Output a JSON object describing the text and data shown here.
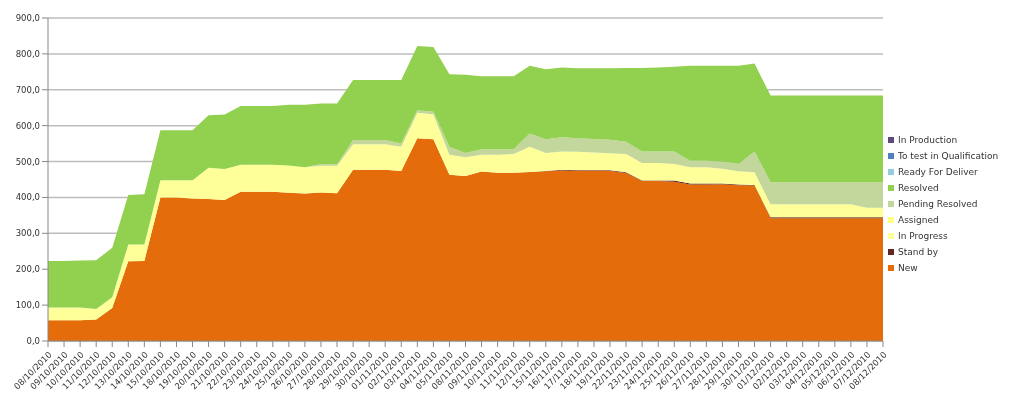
{
  "chart_data": {
    "type": "area",
    "stacked": true,
    "categories": [
      "08/10/2010",
      "09/10/2010",
      "10/10/2010",
      "11/10/2010",
      "12/10/2010",
      "13/10/2010",
      "14/10/2010",
      "15/10/2010",
      "18/10/2010",
      "19/10/2010",
      "20/10/2010",
      "21/10/2010",
      "22/10/2010",
      "23/10/2010",
      "24/10/2010",
      "25/10/2010",
      "26/10/2010",
      "27/10/2010",
      "28/10/2010",
      "29/10/2010",
      "30/10/2010",
      "01/11/2010",
      "02/11/2010",
      "03/11/2010",
      "04/11/2010",
      "05/11/2010",
      "08/11/2010",
      "09/11/2010",
      "10/11/2010",
      "11/11/2010",
      "12/11/2010",
      "15/11/2010",
      "16/11/2010",
      "17/11/2010",
      "18/11/2010",
      "19/11/2010",
      "22/11/2010",
      "23/11/2010",
      "24/11/2010",
      "25/11/2010",
      "26/11/2010",
      "27/11/2010",
      "28/11/2010",
      "29/11/2010",
      "30/11/2010",
      "01/12/2010",
      "02/12/2010",
      "03/12/2010",
      "04/12/2010",
      "05/12/2010",
      "06/12/2010",
      "07/12/2010",
      "08/12/2010"
    ],
    "series": [
      {
        "name": "New",
        "color": "#e46c0a",
        "values": [
          58,
          58,
          58,
          60,
          92,
          222,
          223,
          400,
          400,
          397,
          396,
          393,
          416,
          416,
          416,
          413,
          411,
          414,
          412,
          477,
          477,
          477,
          474,
          565,
          562,
          463,
          460,
          472,
          469,
          469,
          471,
          473,
          475,
          474,
          474,
          474,
          468,
          446,
          446,
          444,
          436,
          436,
          437,
          434,
          433,
          342,
          342,
          342,
          342,
          342,
          342,
          342,
          342
        ]
      },
      {
        "name": "Stand by",
        "color": "#632523",
        "values": [
          0,
          0,
          0,
          0,
          0,
          0,
          0,
          0,
          0,
          0,
          0,
          0,
          0,
          0,
          0,
          0,
          0,
          0,
          0,
          0,
          0,
          0,
          0,
          0,
          0,
          0,
          0,
          0,
          0,
          0,
          0,
          1,
          2,
          2,
          2,
          2,
          2,
          1,
          1,
          3,
          3,
          3,
          2,
          2,
          2,
          3,
          3,
          3,
          3,
          3,
          3,
          3,
          3
        ]
      },
      {
        "name": "In Progress",
        "color": "#ffff99",
        "values": [
          35,
          35,
          35,
          29,
          30,
          47,
          46,
          48,
          48,
          51,
          87,
          86,
          75,
          75,
          75,
          76,
          73,
          74,
          76,
          71,
          71,
          71,
          67,
          71,
          70,
          56,
          52,
          47,
          50,
          52,
          70,
          50,
          51,
          51,
          49,
          47,
          51,
          49,
          49,
          46,
          45,
          45,
          41,
          37,
          35,
          36,
          36,
          36,
          36,
          36,
          36,
          26,
          26
        ]
      },
      {
        "name": "Assigned",
        "color": "#ffff80",
        "values": [
          null,
          null,
          null,
          null,
          null,
          null,
          null,
          null,
          null,
          null,
          null,
          null,
          null,
          null,
          null,
          null,
          null,
          null,
          null,
          null,
          null,
          null,
          null,
          null,
          null,
          null,
          null,
          null,
          null,
          null,
          null,
          null,
          null,
          null,
          null,
          null,
          null,
          null,
          null,
          null,
          null,
          null,
          null,
          null,
          null,
          null,
          null,
          null,
          null,
          null,
          null,
          null,
          null
        ]
      },
      {
        "name": "Pending Resolved",
        "color": "#c3d69b",
        "values": [
          0,
          0,
          0,
          0,
          0,
          0,
          0,
          0,
          0,
          0,
          0,
          0,
          0,
          0,
          0,
          0,
          0,
          5,
          4,
          12,
          12,
          12,
          9,
          7,
          7,
          22,
          12,
          15,
          15,
          13,
          37,
          38,
          40,
          38,
          38,
          38,
          34,
          32,
          32,
          35,
          18,
          18,
          20,
          20,
          58,
          61,
          61,
          61,
          61,
          61,
          61,
          71,
          71
        ]
      },
      {
        "name": "Resolved",
        "color": "#92d050",
        "values": [
          130,
          130,
          131,
          136,
          138,
          138,
          140,
          139,
          139,
          139,
          146,
          152,
          164,
          164,
          164,
          169,
          174,
          169,
          170,
          167,
          167,
          167,
          177,
          179,
          180,
          202,
          218,
          204,
          204,
          204,
          189,
          195,
          194,
          195,
          197,
          199,
          206,
          233,
          234,
          236,
          265,
          265,
          267,
          274,
          245,
          242,
          242,
          242,
          242,
          242,
          242,
          242,
          242
        ]
      },
      {
        "name": "Ready For Deliver",
        "color": "#93cddd",
        "values": [
          null,
          null,
          null,
          null,
          null,
          null,
          null,
          null,
          null,
          null,
          null,
          null,
          null,
          null,
          null,
          null,
          null,
          null,
          null,
          null,
          null,
          null,
          null,
          null,
          null,
          null,
          null,
          null,
          null,
          null,
          null,
          null,
          null,
          null,
          null,
          null,
          null,
          null,
          null,
          null,
          null,
          null,
          null,
          null,
          null,
          null,
          null,
          null,
          null,
          null,
          null,
          null,
          null
        ]
      },
      {
        "name": "To test in Qualification",
        "color": "#4f81bd",
        "values": [
          null,
          null,
          null,
          null,
          null,
          null,
          null,
          null,
          null,
          null,
          null,
          null,
          null,
          null,
          null,
          null,
          null,
          null,
          null,
          null,
          null,
          null,
          null,
          null,
          null,
          null,
          null,
          null,
          null,
          null,
          null,
          null,
          null,
          null,
          null,
          null,
          null,
          null,
          null,
          null,
          null,
          null,
          null,
          null,
          null,
          null,
          null,
          null,
          null,
          null,
          null,
          null,
          null
        ]
      },
      {
        "name": "In Production",
        "color": "#604a7b",
        "values": [
          null,
          null,
          null,
          null,
          null,
          null,
          null,
          null,
          null,
          null,
          null,
          null,
          null,
          null,
          null,
          null,
          null,
          null,
          null,
          null,
          null,
          null,
          null,
          null,
          null,
          null,
          null,
          null,
          null,
          null,
          null,
          null,
          null,
          null,
          null,
          null,
          null,
          null,
          null,
          null,
          null,
          null,
          null,
          null,
          null,
          null,
          null,
          null,
          null,
          null,
          null,
          null,
          null
        ]
      }
    ],
    "ylim": [
      0,
      900
    ],
    "yticks": [
      {
        "value": 0,
        "label": "0,0"
      },
      {
        "value": 100,
        "label": "100,0"
      },
      {
        "value": 200,
        "label": "200,0"
      },
      {
        "value": 300,
        "label": "300,0"
      },
      {
        "value": 400,
        "label": "400,0"
      },
      {
        "value": 500,
        "label": "500,0"
      },
      {
        "value": 600,
        "label": "600,0"
      },
      {
        "value": 700,
        "label": "700,0"
      },
      {
        "value": 800,
        "label": "800,0"
      },
      {
        "value": 900,
        "label": "900,0"
      }
    ],
    "grid": "y",
    "legend": "right",
    "marker": "none"
  }
}
